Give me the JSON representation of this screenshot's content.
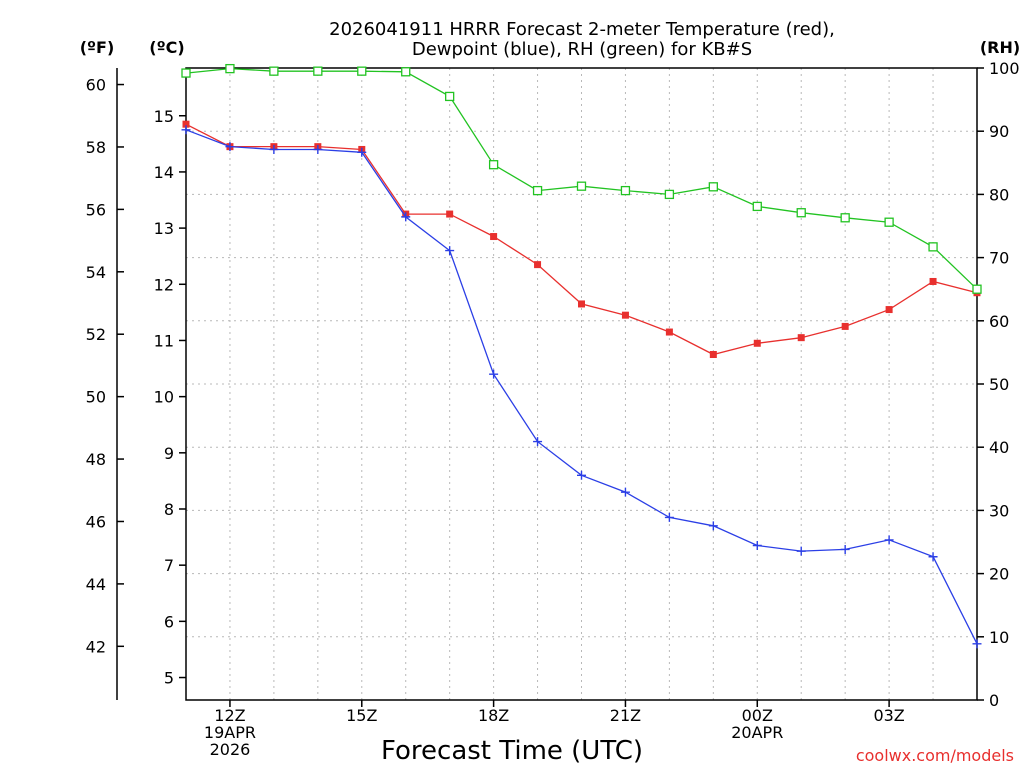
{
  "chart_data": {
    "type": "line",
    "title_line1": "2026041911 HRRR Forecast 2-meter Temperature (red),",
    "title_line2": "Dewpoint (blue), RH (green) for KB#S",
    "xlabel": "Forecast Time (UTC)",
    "unit_labels": {
      "fahrenheit": "(ºF)",
      "celsius": "(ºC)",
      "rh": "(RH)"
    },
    "credit": "coolwx.com/models",
    "x_hours": [
      11,
      12,
      13,
      14,
      15,
      16,
      17,
      18,
      19,
      20,
      21,
      22,
      23,
      24,
      25,
      26,
      27,
      28,
      29
    ],
    "x_range": [
      11,
      29
    ],
    "x_ticks": [
      {
        "hour": 12,
        "lines": [
          "12Z",
          "19APR",
          "2026"
        ]
      },
      {
        "hour": 15,
        "lines": [
          "15Z"
        ]
      },
      {
        "hour": 18,
        "lines": [
          "18Z"
        ]
      },
      {
        "hour": 21,
        "lines": [
          "21Z"
        ]
      },
      {
        "hour": 24,
        "lines": [
          "00Z",
          "20APR"
        ]
      },
      {
        "hour": 27,
        "lines": [
          "03Z"
        ]
      }
    ],
    "celsius_range": [
      4.6,
      15.85
    ],
    "celsius_ticks": [
      5,
      6,
      7,
      8,
      9,
      10,
      11,
      12,
      13,
      14,
      15
    ],
    "fahrenheit_ticks": [
      42,
      44,
      46,
      48,
      50,
      52,
      54,
      56,
      58,
      60
    ],
    "rh_range": [
      0,
      100
    ],
    "rh_ticks": [
      0,
      10,
      20,
      30,
      40,
      50,
      60,
      70,
      80,
      90,
      100
    ],
    "series": [
      {
        "name": "Temperature",
        "axis": "celsius",
        "color": "#e8302e",
        "marker": "square-filled",
        "values": [
          14.85,
          14.45,
          14.45,
          14.45,
          14.4,
          13.25,
          13.25,
          12.85,
          12.35,
          11.65,
          11.45,
          11.15,
          10.75,
          10.95,
          11.05,
          11.25,
          11.55,
          12.05,
          11.85
        ]
      },
      {
        "name": "Dewpoint",
        "axis": "celsius",
        "color": "#2b3fe6",
        "marker": "plus",
        "values": [
          14.75,
          14.45,
          14.4,
          14.4,
          14.35,
          13.2,
          12.6,
          10.4,
          9.2,
          8.6,
          8.3,
          7.85,
          7.7,
          7.35,
          7.25,
          7.28,
          7.45,
          7.15,
          5.6
        ]
      },
      {
        "name": "RH",
        "axis": "rh",
        "color": "#22c322",
        "marker": "square-open",
        "values": [
          99.2,
          99.9,
          99.5,
          99.5,
          99.5,
          99.4,
          95.5,
          84.7,
          80.6,
          81.3,
          80.6,
          80.0,
          81.2,
          78.1,
          77.1,
          76.3,
          75.6,
          71.7,
          65.0
        ]
      }
    ]
  }
}
